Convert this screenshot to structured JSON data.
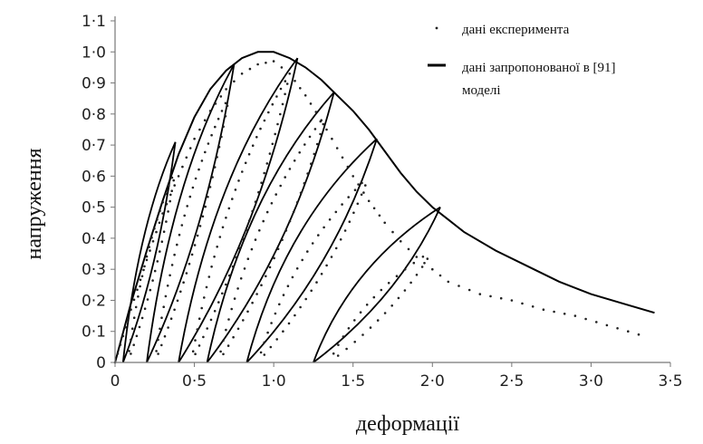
{
  "chart_data": {
    "type": "line",
    "xlabel": "деформації",
    "ylabel": "напруження",
    "xlim": [
      0,
      3.5
    ],
    "ylim": [
      0,
      1.1
    ],
    "x_ticks": [
      "0",
      "0·5",
      "1·0",
      "1·5",
      "2·0",
      "2·5",
      "3·0",
      "3·5"
    ],
    "y_ticks": [
      "0",
      "0·1",
      "0·2",
      "0·3",
      "0·4",
      "0·5",
      "0·6",
      "0·7",
      "0·8",
      "0·9",
      "1·0",
      "1·1"
    ],
    "legend": [
      {
        "label": "дані експеримента",
        "marker": "dot"
      },
      {
        "label": "дані запропонованої в [91] моделі",
        "label_lines": [
          "дані запропонованої в [91]",
          "моделі"
        ],
        "marker": "line"
      }
    ],
    "grid": false,
    "series": [
      {
        "name": "дані запропонованої в [91] моделі",
        "style": "line",
        "envelope": [
          [
            0,
            0
          ],
          [
            0.1,
            0.19
          ],
          [
            0.2,
            0.36
          ],
          [
            0.3,
            0.52
          ],
          [
            0.4,
            0.67
          ],
          [
            0.5,
            0.79
          ],
          [
            0.6,
            0.88
          ],
          [
            0.7,
            0.94
          ],
          [
            0.8,
            0.98
          ],
          [
            0.9,
            1.0
          ],
          [
            1.0,
            1.0
          ],
          [
            1.1,
            0.98
          ],
          [
            1.2,
            0.95
          ],
          [
            1.3,
            0.91
          ],
          [
            1.4,
            0.86
          ],
          [
            1.5,
            0.81
          ],
          [
            1.6,
            0.75
          ],
          [
            1.7,
            0.68
          ],
          [
            1.8,
            0.61
          ],
          [
            1.9,
            0.55
          ],
          [
            2.0,
            0.5
          ],
          [
            2.1,
            0.46
          ],
          [
            2.2,
            0.42
          ],
          [
            2.4,
            0.36
          ],
          [
            2.6,
            0.31
          ],
          [
            2.8,
            0.26
          ],
          [
            3.0,
            0.22
          ],
          [
            3.2,
            0.19
          ],
          [
            3.4,
            0.16
          ]
        ],
        "cycles": [
          {
            "x_peak": 0.38,
            "y_peak": 0.71,
            "x_plastic": 0.05
          },
          {
            "x_peak": 0.75,
            "y_peak": 0.96,
            "x_plastic": 0.2
          },
          {
            "x_peak": 1.15,
            "y_peak": 0.98,
            "x_plastic": 0.4
          },
          {
            "x_peak": 1.38,
            "y_peak": 0.87,
            "x_plastic": 0.58
          },
          {
            "x_peak": 1.65,
            "y_peak": 0.72,
            "x_plastic": 0.83
          },
          {
            "x_peak": 2.05,
            "y_peak": 0.5,
            "x_plastic": 1.25
          }
        ]
      },
      {
        "name": "дані експеримента",
        "style": "dots",
        "envelope": [
          [
            0,
            0
          ],
          [
            0.1,
            0.17
          ],
          [
            0.2,
            0.33
          ],
          [
            0.3,
            0.48
          ],
          [
            0.4,
            0.6
          ],
          [
            0.5,
            0.72
          ],
          [
            0.6,
            0.81
          ],
          [
            0.7,
            0.88
          ],
          [
            0.8,
            0.93
          ],
          [
            0.9,
            0.96
          ],
          [
            1.0,
            0.97
          ],
          [
            1.1,
            0.93
          ],
          [
            1.2,
            0.86
          ],
          [
            1.3,
            0.78
          ],
          [
            1.4,
            0.69
          ],
          [
            1.5,
            0.6
          ],
          [
            1.6,
            0.52
          ],
          [
            1.7,
            0.45
          ],
          [
            1.8,
            0.39
          ],
          [
            1.9,
            0.34
          ],
          [
            2.0,
            0.3
          ],
          [
            2.1,
            0.26
          ],
          [
            2.3,
            0.22
          ],
          [
            2.5,
            0.2
          ],
          [
            2.7,
            0.17
          ],
          [
            2.9,
            0.15
          ],
          [
            3.1,
            0.12
          ],
          [
            3.3,
            0.09
          ]
        ],
        "cycles": [
          {
            "x_peak": 0.38,
            "y_peak": 0.62,
            "x_plastic": 0.08
          },
          {
            "x_peak": 0.72,
            "y_peak": 0.86,
            "x_plastic": 0.25
          },
          {
            "x_peak": 1.1,
            "y_peak": 0.93,
            "x_plastic": 0.48
          },
          {
            "x_peak": 1.33,
            "y_peak": 0.8,
            "x_plastic": 0.65
          },
          {
            "x_peak": 1.6,
            "y_peak": 0.6,
            "x_plastic": 0.9
          },
          {
            "x_peak": 2.0,
            "y_peak": 0.36,
            "x_plastic": 1.35
          }
        ]
      }
    ]
  }
}
